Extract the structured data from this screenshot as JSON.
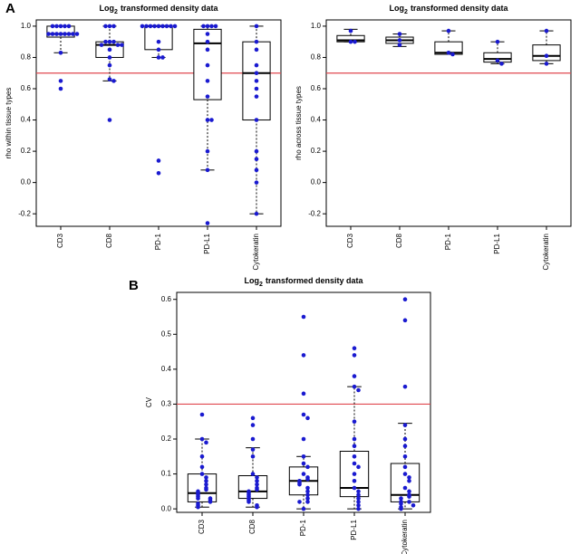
{
  "chart_data": [
    {
      "type": "box",
      "panel_label": "A",
      "title": {
        "main": "Log",
        "sub": "2",
        "rest": "transformed density data"
      },
      "ylabel": "rho within tissue types",
      "categories": [
        "CD3",
        "CD8",
        "PD-1",
        "PD-L1",
        "Cytokeratin"
      ],
      "ylim": [
        -0.28,
        1.04
      ],
      "yticks": [
        -0.2,
        {
          "value": 0,
          "label": "0.0"
        },
        0.2,
        0.4,
        0.6,
        0.8,
        {
          "value": 1,
          "label": "1.0"
        }
      ],
      "hline": 0.7,
      "hline_color": "#e0484f",
      "point_color": "#1a1ad0",
      "boxes": [
        {
          "whisker_low": 0.83,
          "q1": 0.93,
          "median": 0.95,
          "q3": 1.0,
          "whisker_high": 1.0,
          "points": [
            1.0,
            1.0,
            1.0,
            1.0,
            1.0,
            0.95,
            0.95,
            0.95,
            0.95,
            0.95,
            0.95,
            0.95,
            0.95,
            0.83,
            0.65,
            0.6
          ]
        },
        {
          "whisker_low": 0.65,
          "q1": 0.8,
          "median": 0.88,
          "q3": 0.9,
          "whisker_high": 1.0,
          "points": [
            1.0,
            1.0,
            1.0,
            0.9,
            0.9,
            0.9,
            0.88,
            0.88,
            0.88,
            0.85,
            0.8,
            0.75,
            0.66,
            0.65,
            0.4
          ]
        },
        {
          "whisker_low": 0.8,
          "q1": 0.85,
          "median": 1.0,
          "q3": 1.0,
          "whisker_high": 1.0,
          "points": [
            1.0,
            1.0,
            1.0,
            1.0,
            1.0,
            1.0,
            1.0,
            1.0,
            1.0,
            0.9,
            0.85,
            0.8,
            0.8,
            0.14,
            0.06
          ]
        },
        {
          "whisker_low": 0.08,
          "q1": 0.53,
          "median": 0.89,
          "q3": 0.98,
          "whisker_high": 1.0,
          "points": [
            1.0,
            1.0,
            1.0,
            1.0,
            0.95,
            0.9,
            0.85,
            0.75,
            0.65,
            0.55,
            0.4,
            0.4,
            0.2,
            0.08,
            -0.26
          ]
        },
        {
          "whisker_low": -0.2,
          "q1": 0.4,
          "median": 0.7,
          "q3": 0.9,
          "whisker_high": 1.0,
          "points": [
            1.0,
            0.9,
            0.85,
            0.75,
            0.7,
            0.65,
            0.6,
            0.55,
            0.4,
            0.2,
            0.15,
            0.08,
            0,
            -0.2
          ]
        }
      ]
    },
    {
      "type": "box",
      "title": {
        "main": "Log",
        "sub": "2",
        "rest": "transformed density data"
      },
      "ylabel": "rho across tissue types",
      "categories": [
        "CD3",
        "CD8",
        "PD-1",
        "PD-L1",
        "Cytokeratin"
      ],
      "ylim": [
        -0.28,
        1.04
      ],
      "yticks": [
        -0.2,
        {
          "value": 0,
          "label": "0.0"
        },
        0.2,
        0.4,
        0.6,
        0.8,
        {
          "value": 1,
          "label": "1.0"
        }
      ],
      "hline": 0.7,
      "hline_color": "#e0484f",
      "point_color": "#1a1ad0",
      "boxes": [
        {
          "whisker_low": 0.9,
          "q1": 0.9,
          "median": 0.91,
          "q3": 0.94,
          "whisker_high": 0.98,
          "points": [
            0.97,
            0.9,
            0.9
          ]
        },
        {
          "whisker_low": 0.87,
          "q1": 0.89,
          "median": 0.91,
          "q3": 0.93,
          "whisker_high": 0.95,
          "points": [
            0.95,
            0.91,
            0.88
          ]
        },
        {
          "whisker_low": 0.82,
          "q1": 0.82,
          "median": 0.83,
          "q3": 0.9,
          "whisker_high": 0.97,
          "points": [
            0.97,
            0.83,
            0.82
          ]
        },
        {
          "whisker_low": 0.76,
          "q1": 0.77,
          "median": 0.79,
          "q3": 0.83,
          "whisker_high": 0.9,
          "points": [
            0.9,
            0.78,
            0.76
          ]
        },
        {
          "whisker_low": 0.76,
          "q1": 0.78,
          "median": 0.81,
          "q3": 0.88,
          "whisker_high": 0.97,
          "points": [
            0.97,
            0.81,
            0.76
          ]
        }
      ]
    },
    {
      "type": "box",
      "panel_label": "B",
      "title": {
        "main": "Log",
        "sub": "2",
        "rest": "transformed density data"
      },
      "ylabel": "CV",
      "categories": [
        "CD3",
        "CD8",
        "PD-1",
        "PD-L1",
        "Cytokeratin"
      ],
      "ylim": [
        -0.01,
        0.62
      ],
      "yticks": [
        {
          "value": 0,
          "label": "0.0"
        },
        0.1,
        0.2,
        0.3,
        0.4,
        0.5,
        0.6
      ],
      "hline": 0.3,
      "hline_color": "#e0484f",
      "point_color": "#1a1ad0",
      "boxes": [
        {
          "whisker_low": 0.005,
          "q1": 0.02,
          "median": 0.045,
          "q3": 0.1,
          "whisker_high": 0.2,
          "points": [
            0.27,
            0.2,
            0.19,
            0.15,
            0.12,
            0.1,
            0.09,
            0.08,
            0.07,
            0.06,
            0.055,
            0.05,
            0.045,
            0.04,
            0.035,
            0.03,
            0.03,
            0.025,
            0.02,
            0.015,
            0.01,
            0.005
          ]
        },
        {
          "whisker_low": 0.005,
          "q1": 0.03,
          "median": 0.05,
          "q3": 0.095,
          "whisker_high": 0.175,
          "points": [
            0.26,
            0.24,
            0.2,
            0.17,
            0.15,
            0.1,
            0.09,
            0.08,
            0.07,
            0.06,
            0.055,
            0.05,
            0.045,
            0.04,
            0.035,
            0.03,
            0.025,
            0.02,
            0.01,
            0.005
          ]
        },
        {
          "whisker_low": 0,
          "q1": 0.04,
          "median": 0.08,
          "q3": 0.12,
          "whisker_high": 0.15,
          "points": [
            0.55,
            0.44,
            0.33,
            0.27,
            0.26,
            0.2,
            0.15,
            0.13,
            0.12,
            0.1,
            0.09,
            0.085,
            0.08,
            0.075,
            0.07,
            0.06,
            0.05,
            0.04,
            0.03,
            0.02,
            0.02,
            0
          ]
        },
        {
          "whisker_low": 0,
          "q1": 0.035,
          "median": 0.06,
          "q3": 0.165,
          "whisker_high": 0.35,
          "points": [
            0.46,
            0.44,
            0.38,
            0.35,
            0.34,
            0.25,
            0.2,
            0.18,
            0.15,
            0.13,
            0.12,
            0.1,
            0.08,
            0.06,
            0.05,
            0.04,
            0.03,
            0.02,
            0.01,
            0
          ]
        },
        {
          "whisker_low": 0,
          "q1": 0.02,
          "median": 0.04,
          "q3": 0.13,
          "whisker_high": 0.245,
          "points": [
            0.6,
            0.54,
            0.35,
            0.24,
            0.2,
            0.18,
            0.15,
            0.12,
            0.1,
            0.09,
            0.08,
            0.06,
            0.05,
            0.04,
            0.035,
            0.03,
            0.02,
            0.02,
            0.015,
            0.01,
            0.005,
            0
          ]
        }
      ]
    }
  ]
}
